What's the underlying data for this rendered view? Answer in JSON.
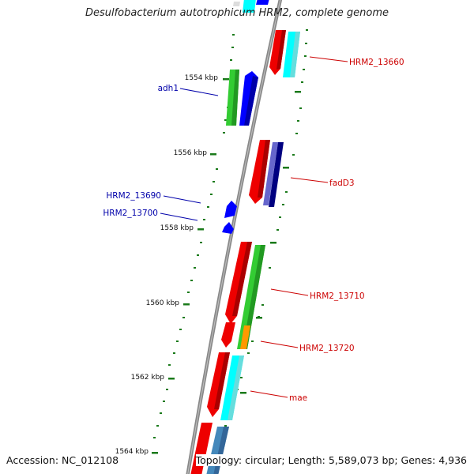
{
  "title": "Desulfobacterium autotrophicum HRM2, complete genome",
  "footer": {
    "accession": "Accession: NC_012108",
    "summary": "Topology: circular; Length: 5,589,073 bp; Genes: 4,936"
  },
  "colors": {
    "backbone": "#808080",
    "tick": "#1a7a1a",
    "forward_label": "#cc0000",
    "reverse_label": "#0000aa",
    "gene_red": "#ff0000",
    "gene_cyan": "#00ffff",
    "gene_green": "#33cc33",
    "gene_blue": "#0000ff",
    "gene_slate": "#6666cc",
    "gene_navy": "#000080",
    "gene_orange": "#ff9900",
    "gene_steel": "#4488bb"
  },
  "ticks": [
    {
      "label": "1554 kbp"
    },
    {
      "label": "1556 kbp"
    },
    {
      "label": "1558 kbp"
    },
    {
      "label": "1560 kbp"
    },
    {
      "label": "1562 kbp"
    },
    {
      "label": "1564 kbp"
    }
  ],
  "gene_labels": [
    {
      "text": "HRM2_13660",
      "strand": "forward"
    },
    {
      "text": "adh1",
      "strand": "reverse"
    },
    {
      "text": "fadD3",
      "strand": "forward"
    },
    {
      "text": "HRM2_13690",
      "strand": "reverse"
    },
    {
      "text": "HRM2_13700",
      "strand": "reverse"
    },
    {
      "text": "HRM2_13710",
      "strand": "forward"
    },
    {
      "text": "HRM2_13720",
      "strand": "forward"
    },
    {
      "text": "mae",
      "strand": "forward"
    }
  ]
}
